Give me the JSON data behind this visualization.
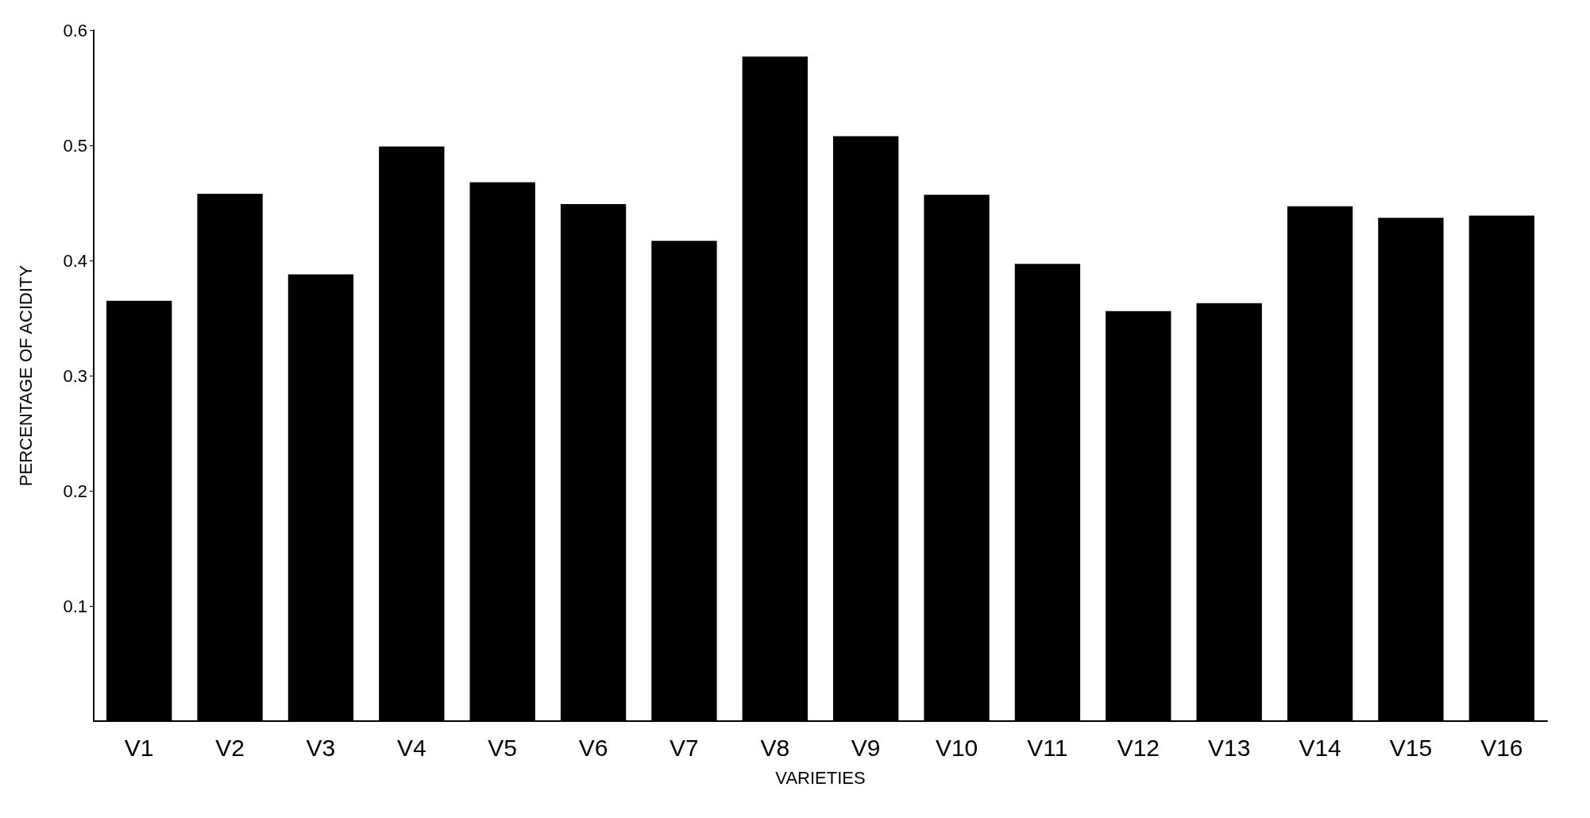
{
  "chart_data": {
    "type": "bar",
    "xlabel": "VARIETIES",
    "ylabel": "PERCENTAGE OF ACIDITY",
    "categories": [
      "V1",
      "V2",
      "V3",
      "V4",
      "V5",
      "V6",
      "V7",
      "V8",
      "V9",
      "V10",
      "V11",
      "V12",
      "V13",
      "V14",
      "V15",
      "V16"
    ],
    "values": [
      0.365,
      0.458,
      0.388,
      0.499,
      0.468,
      0.449,
      0.417,
      0.577,
      0.508,
      0.457,
      0.397,
      0.356,
      0.363,
      0.447,
      0.437,
      0.439
    ],
    "color": "#000000",
    "ylim": [
      0,
      0.6
    ],
    "yticks": [
      0.1,
      0.2,
      0.3,
      0.4,
      0.5,
      0.6
    ],
    "grid": false
  }
}
